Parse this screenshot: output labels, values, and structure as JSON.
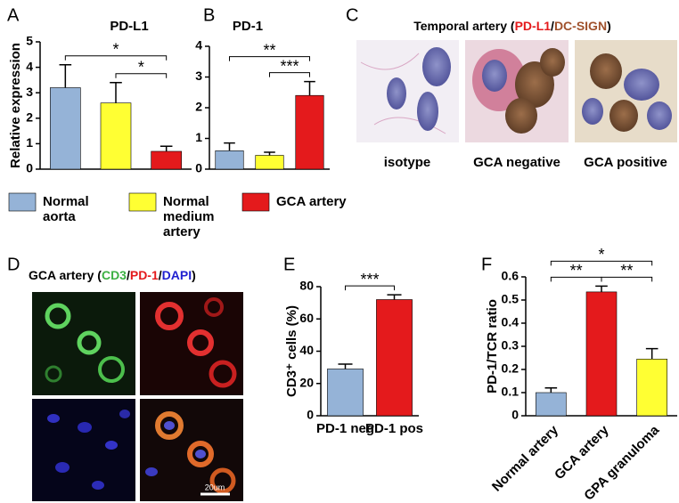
{
  "chart_data": [
    {
      "type": "bar",
      "panel": "A",
      "title": "PD-L1",
      "ylabel": "Relative expression",
      "categories": [
        null,
        null,
        null
      ],
      "values": [
        3.2,
        2.6,
        0.7
      ],
      "errors": [
        0.9,
        0.8,
        0.2
      ],
      "colors": [
        "#95b3d7",
        "#ffff33",
        "#e41a1c"
      ],
      "ylim": [
        0,
        5
      ],
      "yticks": [
        0,
        1,
        2,
        3,
        4,
        5
      ],
      "annotations": [
        {
          "text": "*",
          "from": 1,
          "to": 2
        },
        {
          "text": "*",
          "from": 0,
          "to": 2
        }
      ]
    },
    {
      "type": "bar",
      "panel": "B",
      "title": "PD-1",
      "categories": [
        null,
        null,
        null
      ],
      "values": [
        0.6,
        0.45,
        2.4
      ],
      "errors": [
        0.25,
        0.1,
        0.45
      ],
      "colors": [
        "#95b3d7",
        "#ffff33",
        "#e41a1c"
      ],
      "ylim": [
        0,
        4
      ],
      "yticks": [
        0,
        1,
        2,
        3,
        4
      ],
      "annotations": [
        {
          "text": "***",
          "from": 1,
          "to": 2
        },
        {
          "text": "**",
          "from": 0,
          "to": 2
        }
      ]
    },
    {
      "type": "bar",
      "panel": "E",
      "ylabel": "CD3⁺ cells (%)",
      "categories": [
        "PD-1 neg",
        "PD-1 pos"
      ],
      "values": [
        29,
        72
      ],
      "errors": [
        3,
        3
      ],
      "colors": [
        "#95b3d7",
        "#e41a1c"
      ],
      "ylim": [
        0,
        80
      ],
      "yticks": [
        0,
        20,
        40,
        60,
        80
      ],
      "annotations": [
        {
          "text": "***",
          "from": 0,
          "to": 1
        }
      ]
    },
    {
      "type": "bar",
      "panel": "F",
      "ylabel": "PD-1/TCR ratio",
      "categories": [
        "Normal artery",
        "GCA artery",
        "GPA granuloma"
      ],
      "values": [
        0.1,
        0.535,
        0.245
      ],
      "errors": [
        0.02,
        0.025,
        0.045
      ],
      "colors": [
        "#95b3d7",
        "#e41a1c",
        "#ffff33"
      ],
      "ylim": [
        0,
        0.6
      ],
      "yticks": [
        0,
        0.1,
        0.2,
        0.3,
        0.4,
        0.5,
        0.6
      ],
      "annotations": [
        {
          "text": "**",
          "from": 0,
          "to": 1
        },
        {
          "text": "**",
          "from": 1,
          "to": 2
        },
        {
          "text": "*",
          "from": 0,
          "to": 2
        }
      ]
    }
  ],
  "legend": {
    "entries": [
      {
        "label": "Normal aorta",
        "color": "#95b3d7"
      },
      {
        "label": "Normal medium artery",
        "color": "#ffff33"
      },
      {
        "label": "GCA artery",
        "color": "#e41a1c"
      }
    ]
  },
  "image_panels": [
    {
      "panel": "C",
      "title_parts": [
        {
          "text": "Temporal artery (",
          "color": "#000000"
        },
        {
          "text": "PD-L1",
          "color": "#e41a1c"
        },
        {
          "text": "/",
          "color": "#000000"
        },
        {
          "text": "DC-SIGN",
          "color": "#a0522d"
        },
        {
          "text": ")",
          "color": "#000000"
        }
      ],
      "labels": [
        "isotype",
        "GCA negative",
        "GCA positive"
      ]
    },
    {
      "panel": "D",
      "title_parts": [
        {
          "text": "GCA artery (",
          "color": "#000000"
        },
        {
          "text": "CD3",
          "color": "#3cb043"
        },
        {
          "text": "/",
          "color": "#000000"
        },
        {
          "text": "PD-1",
          "color": "#e41a1c"
        },
        {
          "text": "/",
          "color": "#000000"
        },
        {
          "text": "DAPI",
          "color": "#1f1fd0"
        },
        {
          "text": ")",
          "color": "#000000"
        }
      ],
      "scale_bar": "20um"
    }
  ]
}
